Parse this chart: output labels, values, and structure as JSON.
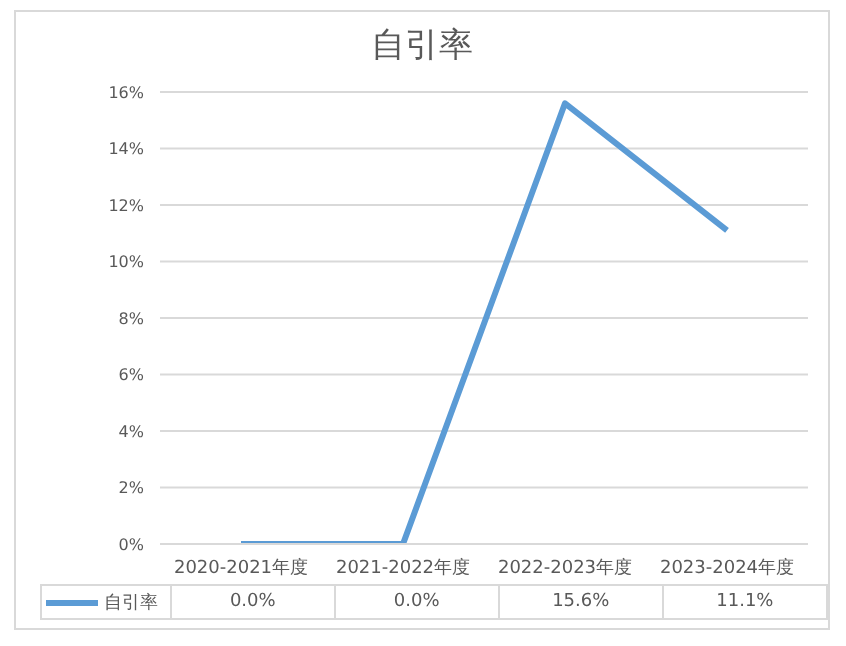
{
  "chart_data": {
    "type": "line",
    "title": "自引率",
    "categories": [
      "2020-2021年度",
      "2021-2022年度",
      "2022-2023年度",
      "2023-2024年度"
    ],
    "series": [
      {
        "name": "自引率",
        "color": "#5b9bd5",
        "values": [
          0.0,
          0.0,
          15.6,
          11.1
        ],
        "value_labels": [
          "0.0%",
          "0.0%",
          "15.6%",
          "11.1%"
        ]
      }
    ],
    "ylim": [
      0,
      16
    ],
    "yticks": [
      {
        "value": 0,
        "label": "0%"
      },
      {
        "value": 2,
        "label": "2%"
      },
      {
        "value": 4,
        "label": "4%"
      },
      {
        "value": 6,
        "label": "6%"
      },
      {
        "value": 8,
        "label": "8%"
      },
      {
        "value": 10,
        "label": "10%"
      },
      {
        "value": 12,
        "label": "12%"
      },
      {
        "value": 14,
        "label": "14%"
      },
      {
        "value": 16,
        "label": "16%"
      }
    ],
    "grid": "y",
    "legend": "bottom"
  }
}
